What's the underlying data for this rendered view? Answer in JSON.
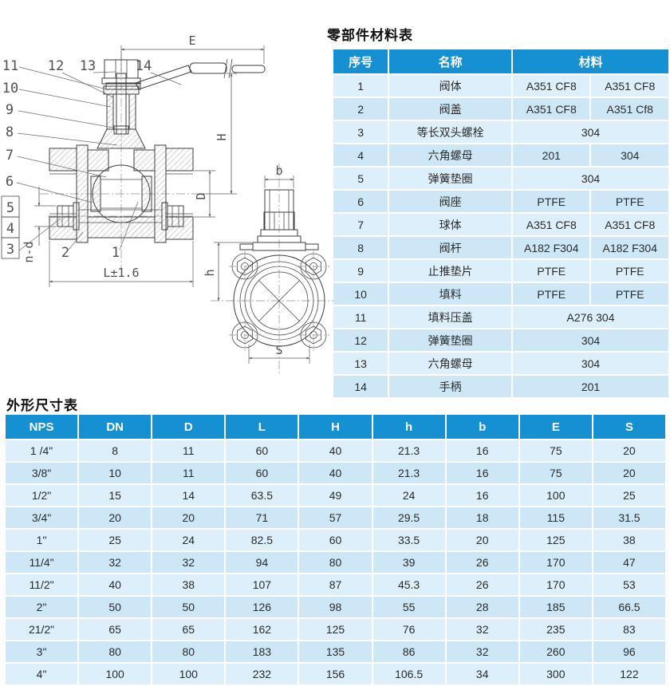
{
  "page": {
    "background": "#ffffff"
  },
  "colors": {
    "table_header_blue": "#1590d2",
    "row_light": "#dceffb",
    "row_dark": "#cde7f7",
    "header_text": "#ffffff",
    "body_text": "#2b2b2b",
    "drawing_line": "#3d3d3d"
  },
  "drawing": {
    "dim_labels": {
      "E": "E",
      "H": "H",
      "D": "D",
      "L": "L±1.6",
      "n_d": "n-d",
      "b": "b",
      "h": "h",
      "S": "S"
    },
    "callouts": {
      "c1": "1",
      "c2": "2",
      "c3": "3",
      "c4": "4",
      "c5": "5",
      "c6": "6",
      "c7": "7",
      "c8": "8",
      "c9": "9",
      "c10": "10",
      "c11": "11",
      "c12": "12",
      "c13": "13",
      "c14": "14"
    }
  },
  "materials_table": {
    "title": "零部件材料表",
    "headers": {
      "no": "序号",
      "name": "名称",
      "material": "材料"
    },
    "rows": [
      {
        "no": "1",
        "name": "阀体",
        "m1": "A351 CF8",
        "m2": "A351 CF8",
        "merged": false
      },
      {
        "no": "2",
        "name": "阀盖",
        "m1": "A351 CF8",
        "m2": "A351 Cf8",
        "merged": false
      },
      {
        "no": "3",
        "name": "等长双头螺栓",
        "m1": "304",
        "m2": "",
        "merged": true
      },
      {
        "no": "4",
        "name": "六角螺母",
        "m1": "201",
        "m2": "304",
        "merged": false
      },
      {
        "no": "5",
        "name": "弹簧垫圈",
        "m1": "304",
        "m2": "",
        "merged": true
      },
      {
        "no": "6",
        "name": "阀座",
        "m1": "PTFE",
        "m2": "PTFE",
        "merged": false
      },
      {
        "no": "7",
        "name": "球体",
        "m1": "A351 CF8",
        "m2": "A351 CF8",
        "merged": false
      },
      {
        "no": "8",
        "name": "阀杆",
        "m1": "A182 F304",
        "m2": "A182 F304",
        "merged": false
      },
      {
        "no": "9",
        "name": "止推垫片",
        "m1": "PTFE",
        "m2": "PTFE",
        "merged": false
      },
      {
        "no": "10",
        "name": "填料",
        "m1": "PTFE",
        "m2": "PTFE",
        "merged": false
      },
      {
        "no": "11",
        "name": "填料压盖",
        "m1": "A276 304",
        "m2": "",
        "merged": true
      },
      {
        "no": "12",
        "name": "弹簧垫圈",
        "m1": "304",
        "m2": "",
        "merged": true
      },
      {
        "no": "13",
        "name": "六角螺母",
        "m1": "304",
        "m2": "",
        "merged": true
      },
      {
        "no": "14",
        "name": "手柄",
        "m1": "201",
        "m2": "",
        "merged": true
      }
    ]
  },
  "dimensions_table": {
    "title": "外形尺寸表",
    "headers": [
      "NPS",
      "DN",
      "D",
      "L",
      "H",
      "h",
      "b",
      "E",
      "S"
    ],
    "rows": [
      [
        "1 /4\"",
        "8",
        "11",
        "60",
        "40",
        "21.3",
        "16",
        "75",
        "20"
      ],
      [
        "3/8\"",
        "10",
        "11",
        "60",
        "40",
        "21.3",
        "16",
        "75",
        "20"
      ],
      [
        "1/2\"",
        "15",
        "14",
        "63.5",
        "49",
        "24",
        "16",
        "100",
        "25"
      ],
      [
        "3/4\"",
        "20",
        "20",
        "71",
        "57",
        "29.5",
        "18",
        "115",
        "31.5"
      ],
      [
        "1\"",
        "25",
        "24",
        "82.5",
        "60",
        "33.5",
        "20",
        "125",
        "38"
      ],
      [
        "11/4\"",
        "32",
        "32",
        "94",
        "80",
        "39",
        "26",
        "170",
        "47"
      ],
      [
        "11/2\"",
        "40",
        "38",
        "107",
        "87",
        "45.3",
        "26",
        "170",
        "53"
      ],
      [
        "2\"",
        "50",
        "50",
        "126",
        "98",
        "55",
        "28",
        "185",
        "66.5"
      ],
      [
        "21/2\"",
        "65",
        "65",
        "162",
        "125",
        "76",
        "32",
        "235",
        "83"
      ],
      [
        "3\"",
        "80",
        "80",
        "183",
        "135",
        "86",
        "32",
        "260",
        "96"
      ],
      [
        "4\"",
        "100",
        "100",
        "232",
        "156",
        "106.5",
        "34",
        "300",
        "122"
      ]
    ]
  }
}
